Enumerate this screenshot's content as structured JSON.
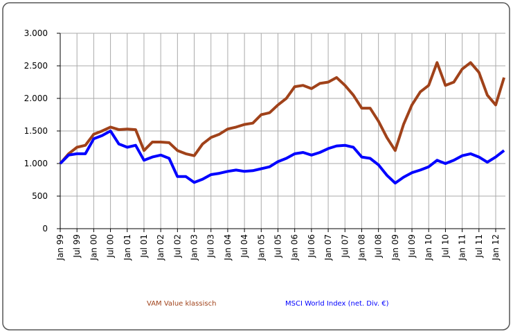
{
  "chart_data": {
    "type": "line",
    "categories": [
      "Jan 99",
      null,
      "Jul 99",
      null,
      "Jan 00",
      null,
      "Jul 00",
      null,
      "Jan 01",
      null,
      "Jul 01",
      null,
      "Jan 02",
      null,
      "Jul 02",
      null,
      "Jan 03",
      null,
      "Jul 03",
      null,
      "Jan 04",
      null,
      "Jul 04",
      null,
      "Jan 05",
      null,
      "Jul 05",
      null,
      "Jan 06",
      null,
      "Jul 06",
      null,
      "Jan 07",
      null,
      "Jul 07",
      null,
      "Jan 08",
      null,
      "Jul 08",
      null,
      "Jan 09",
      null,
      "Jul 09",
      null,
      "Jan 10",
      null,
      "Jul 10",
      null,
      "Jan 11",
      null,
      "Jul 11",
      null,
      "Jan 12",
      null
    ],
    "series": [
      {
        "name": "VAM Value klassisch",
        "color": "#a0421a",
        "values": [
          1000,
          1150,
          1250,
          1280,
          1450,
          1500,
          1560,
          1520,
          1530,
          1520,
          1200,
          1330,
          1330,
          1320,
          1200,
          1150,
          1120,
          1300,
          1400,
          1450,
          1530,
          1560,
          1600,
          1620,
          1750,
          1780,
          1900,
          2000,
          2180,
          2200,
          2150,
          2230,
          2250,
          2320,
          2200,
          2050,
          1850,
          1850,
          1650,
          1400,
          1200,
          1600,
          1900,
          2100,
          2200,
          2550,
          2200,
          2250,
          2450,
          2550,
          2400,
          2050,
          1900,
          2320
        ]
      },
      {
        "name": "MSCI World Index (net. Div. €)",
        "color": "#0000ff",
        "values": [
          1000,
          1130,
          1150,
          1150,
          1380,
          1430,
          1500,
          1300,
          1250,
          1280,
          1050,
          1100,
          1130,
          1080,
          800,
          800,
          710,
          760,
          830,
          850,
          880,
          900,
          880,
          890,
          920,
          950,
          1030,
          1080,
          1150,
          1170,
          1130,
          1170,
          1230,
          1270,
          1280,
          1250,
          1100,
          1080,
          980,
          820,
          700,
          790,
          860,
          900,
          950,
          1050,
          1000,
          1050,
          1120,
          1150,
          1100,
          1020,
          1100,
          1200
        ]
      }
    ],
    "ylim": [
      0,
      3000
    ],
    "yticks": [
      0,
      500,
      {
        "value": 1000,
        "label": "1.000"
      },
      {
        "value": 1500,
        "label": "1.500"
      },
      {
        "value": 2000,
        "label": "2.000"
      },
      {
        "value": 2500,
        "label": "2.500"
      },
      {
        "value": 3000,
        "label": "3.000"
      }
    ],
    "grid": true
  }
}
